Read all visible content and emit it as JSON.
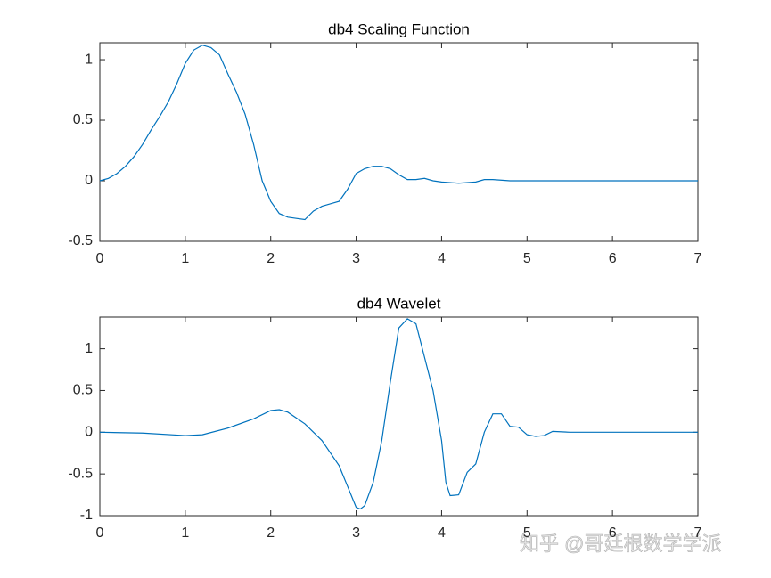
{
  "chart_data": [
    {
      "type": "line",
      "title": "db4 Scaling Function",
      "x": [
        0,
        0.1,
        0.2,
        0.3,
        0.4,
        0.5,
        0.6,
        0.7,
        0.8,
        0.9,
        1.0,
        1.1,
        1.2,
        1.3,
        1.4,
        1.5,
        1.6,
        1.7,
        1.8,
        1.9,
        2.0,
        2.1,
        2.2,
        2.3,
        2.4,
        2.5,
        2.6,
        2.7,
        2.8,
        2.9,
        3.0,
        3.1,
        3.2,
        3.3,
        3.4,
        3.5,
        3.6,
        3.7,
        3.8,
        3.9,
        4.0,
        4.2,
        4.4,
        4.5,
        4.6,
        4.8,
        5.0,
        5.5,
        6.0,
        7.0
      ],
      "series": [
        {
          "color": "#0072bd",
          "values": [
            0,
            0.02,
            0.06,
            0.12,
            0.2,
            0.3,
            0.42,
            0.53,
            0.65,
            0.8,
            0.97,
            1.08,
            1.12,
            1.1,
            1.04,
            0.88,
            0.73,
            0.55,
            0.3,
            0.0,
            -0.17,
            -0.27,
            -0.3,
            -0.31,
            -0.32,
            -0.25,
            -0.21,
            -0.19,
            -0.17,
            -0.07,
            0.06,
            0.1,
            0.12,
            0.12,
            0.1,
            0.05,
            0.01,
            0.01,
            0.02,
            0.0,
            -0.01,
            -0.02,
            -0.01,
            0.01,
            0.01,
            0.0,
            0.0,
            0,
            0,
            0
          ]
        }
      ],
      "xlim": [
        0,
        7
      ],
      "xticks": [
        0,
        1,
        2,
        3,
        4,
        5,
        6,
        7
      ],
      "ylim": [
        -0.5,
        1.14
      ],
      "yticks": [
        -0.5,
        0,
        0.5,
        1
      ]
    },
    {
      "type": "line",
      "title": "db4 Wavelet",
      "x": [
        0,
        0.5,
        1.0,
        1.2,
        1.5,
        1.8,
        2.0,
        2.1,
        2.2,
        2.4,
        2.6,
        2.8,
        2.9,
        3.0,
        3.05,
        3.1,
        3.2,
        3.3,
        3.4,
        3.5,
        3.6,
        3.7,
        3.8,
        3.9,
        4.0,
        4.05,
        4.1,
        4.2,
        4.3,
        4.4,
        4.5,
        4.6,
        4.7,
        4.8,
        4.9,
        5.0,
        5.1,
        5.2,
        5.3,
        5.5,
        6.0,
        7.0
      ],
      "series": [
        {
          "color": "#0072bd",
          "values": [
            0,
            -0.01,
            -0.04,
            -0.03,
            0.05,
            0.16,
            0.26,
            0.27,
            0.24,
            0.1,
            -0.1,
            -0.4,
            -0.65,
            -0.9,
            -0.92,
            -0.88,
            -0.6,
            -0.1,
            0.6,
            1.25,
            1.36,
            1.3,
            0.9,
            0.5,
            -0.1,
            -0.6,
            -0.76,
            -0.75,
            -0.48,
            -0.38,
            0.0,
            0.22,
            0.22,
            0.07,
            0.06,
            -0.03,
            -0.05,
            -0.04,
            0.01,
            0.0,
            0,
            0
          ]
        }
      ],
      "xlim": [
        0,
        7
      ],
      "xticks": [
        0,
        1,
        2,
        3,
        4,
        5,
        6,
        7
      ],
      "ylim": [
        -1,
        1.38
      ],
      "yticks": [
        -1,
        -0.5,
        0,
        0.5,
        1
      ]
    }
  ],
  "watermark": "知乎 @哥廷根数学学派"
}
